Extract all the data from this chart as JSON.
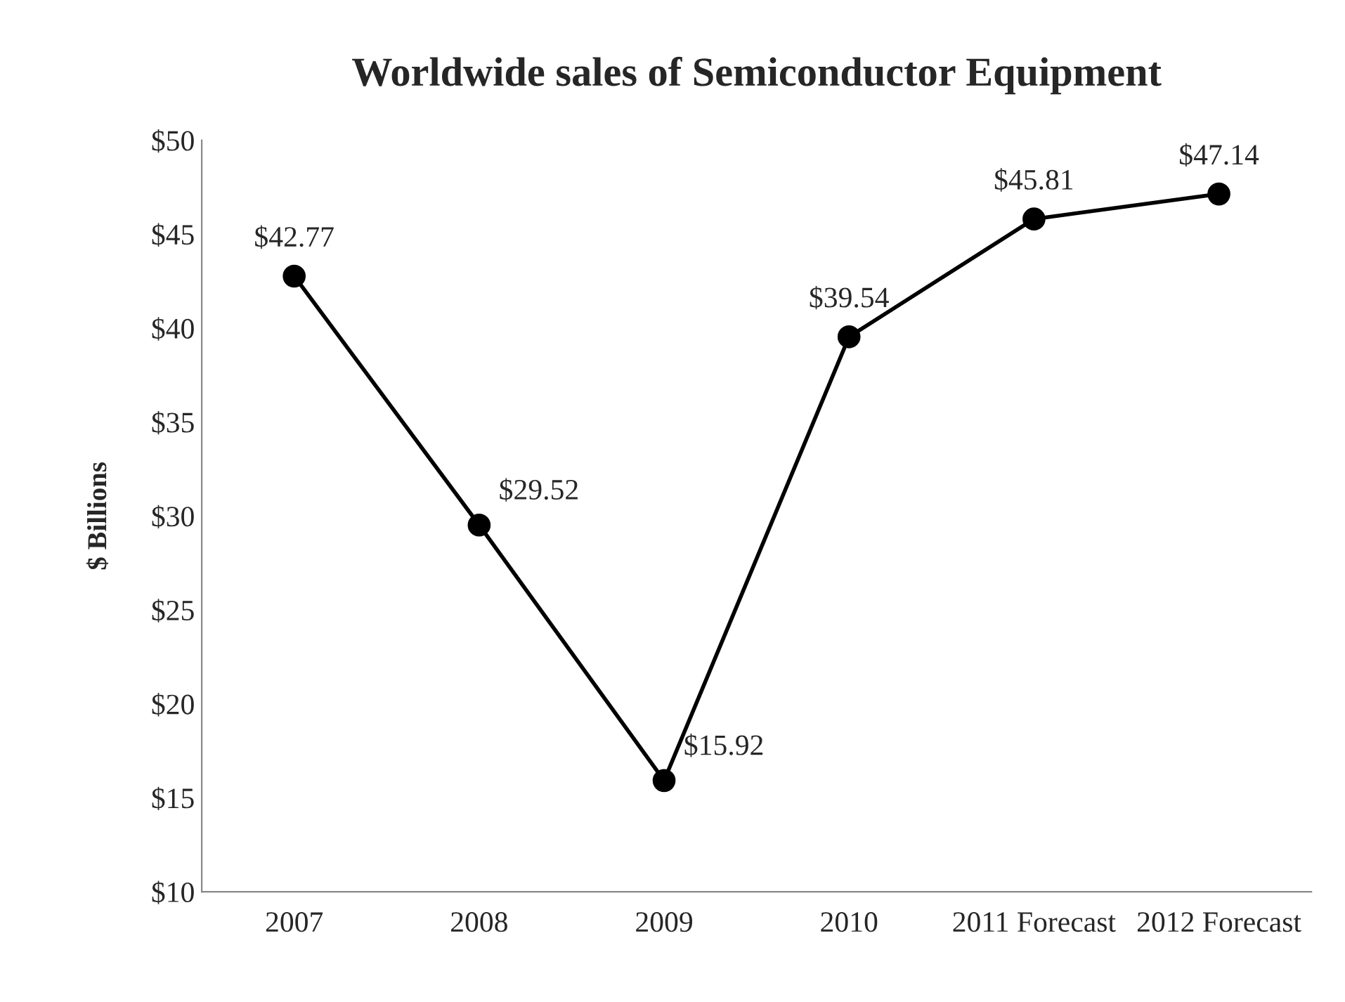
{
  "chart_data": {
    "type": "line",
    "title": "Worldwide sales of Semiconductor Equipment",
    "ylabel": "$ Billions",
    "categories": [
      "2007",
      "2008",
      "2009",
      "2010",
      "2011 Forecast",
      "2012 Forecast"
    ],
    "series": [
      {
        "color": "#000000",
        "values": [
          42.77,
          29.52,
          15.92,
          39.54,
          45.81,
          47.14
        ],
        "value_labels": [
          "$42.77",
          "$29.52",
          "$15.92",
          "$39.54",
          "$45.81",
          "$47.14"
        ]
      }
    ],
    "ylim": [
      10,
      50
    ],
    "yticks": [
      {
        "value": 10,
        "label": "$10"
      },
      {
        "value": 15,
        "label": "$15"
      },
      {
        "value": 20,
        "label": "$20"
      },
      {
        "value": 25,
        "label": "$25"
      },
      {
        "value": 30,
        "label": "$30"
      },
      {
        "value": 35,
        "label": "$35"
      },
      {
        "value": 40,
        "label": "$40"
      },
      {
        "value": 45,
        "label": "$45"
      },
      {
        "value": 50,
        "label": "$50"
      }
    ],
    "marker": "circle",
    "line_style": "solid",
    "grid": false,
    "legend": false
  }
}
